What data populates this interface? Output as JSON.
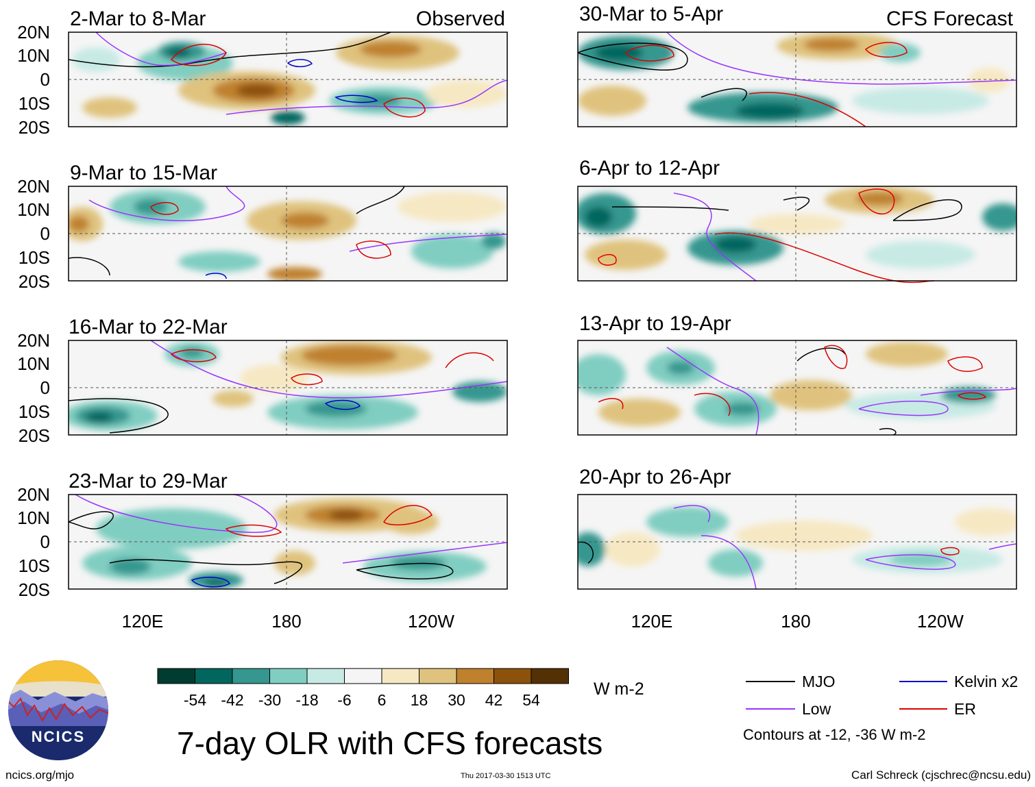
{
  "title": "7-day OLR with CFS forecasts",
  "columns": {
    "left_header": "Observed",
    "right_header": "CFS Forecast"
  },
  "panels": [
    {
      "id": "p1",
      "label": "2-Mar to 8-Mar",
      "column": "observed"
    },
    {
      "id": "p2",
      "label": "9-Mar to 15-Mar",
      "column": "observed"
    },
    {
      "id": "p3",
      "label": "16-Mar to 22-Mar",
      "column": "observed"
    },
    {
      "id": "p4",
      "label": "23-Mar to 29-Mar",
      "column": "observed"
    },
    {
      "id": "p5",
      "label": "30-Mar to 5-Apr",
      "column": "forecast"
    },
    {
      "id": "p6",
      "label": "6-Apr to 12-Apr",
      "column": "forecast"
    },
    {
      "id": "p7",
      "label": "13-Apr to 19-Apr",
      "column": "forecast"
    },
    {
      "id": "p8",
      "label": "20-Apr to 26-Apr",
      "column": "forecast"
    }
  ],
  "lat_ticks": [
    "20N",
    "10N",
    "0",
    "10S",
    "20S"
  ],
  "lon_ticks": [
    "120E",
    "180",
    "120W"
  ],
  "colorbar": {
    "unit": "W m-2",
    "labels": [
      "-54",
      "-42",
      "-30",
      "-18",
      "-6",
      "6",
      "18",
      "30",
      "42",
      "54"
    ],
    "colors": [
      "#003c30",
      "#01665e",
      "#35978f",
      "#80cdc1",
      "#c7eae5",
      "#f5f5f5",
      "#f6e8c3",
      "#dfc27d",
      "#bf812d",
      "#8c510a",
      "#543005"
    ]
  },
  "legend": {
    "items": [
      {
        "label": "MJO",
        "color": "#000000"
      },
      {
        "label": "Low",
        "color": "#9933ff"
      },
      {
        "label": "Kelvin x2",
        "color": "#0000cc"
      },
      {
        "label": "ER",
        "color": "#dd0000"
      }
    ],
    "contour_note": "Contours at -12, -36 W m-2"
  },
  "logo_text": "NCICS",
  "footer": {
    "url": "ncics.org/mjo",
    "timestamp": "Thu 2017-03-30 1513 UTC",
    "author": "Carl Schreck (cjschrec@ncsu.edu)"
  }
}
